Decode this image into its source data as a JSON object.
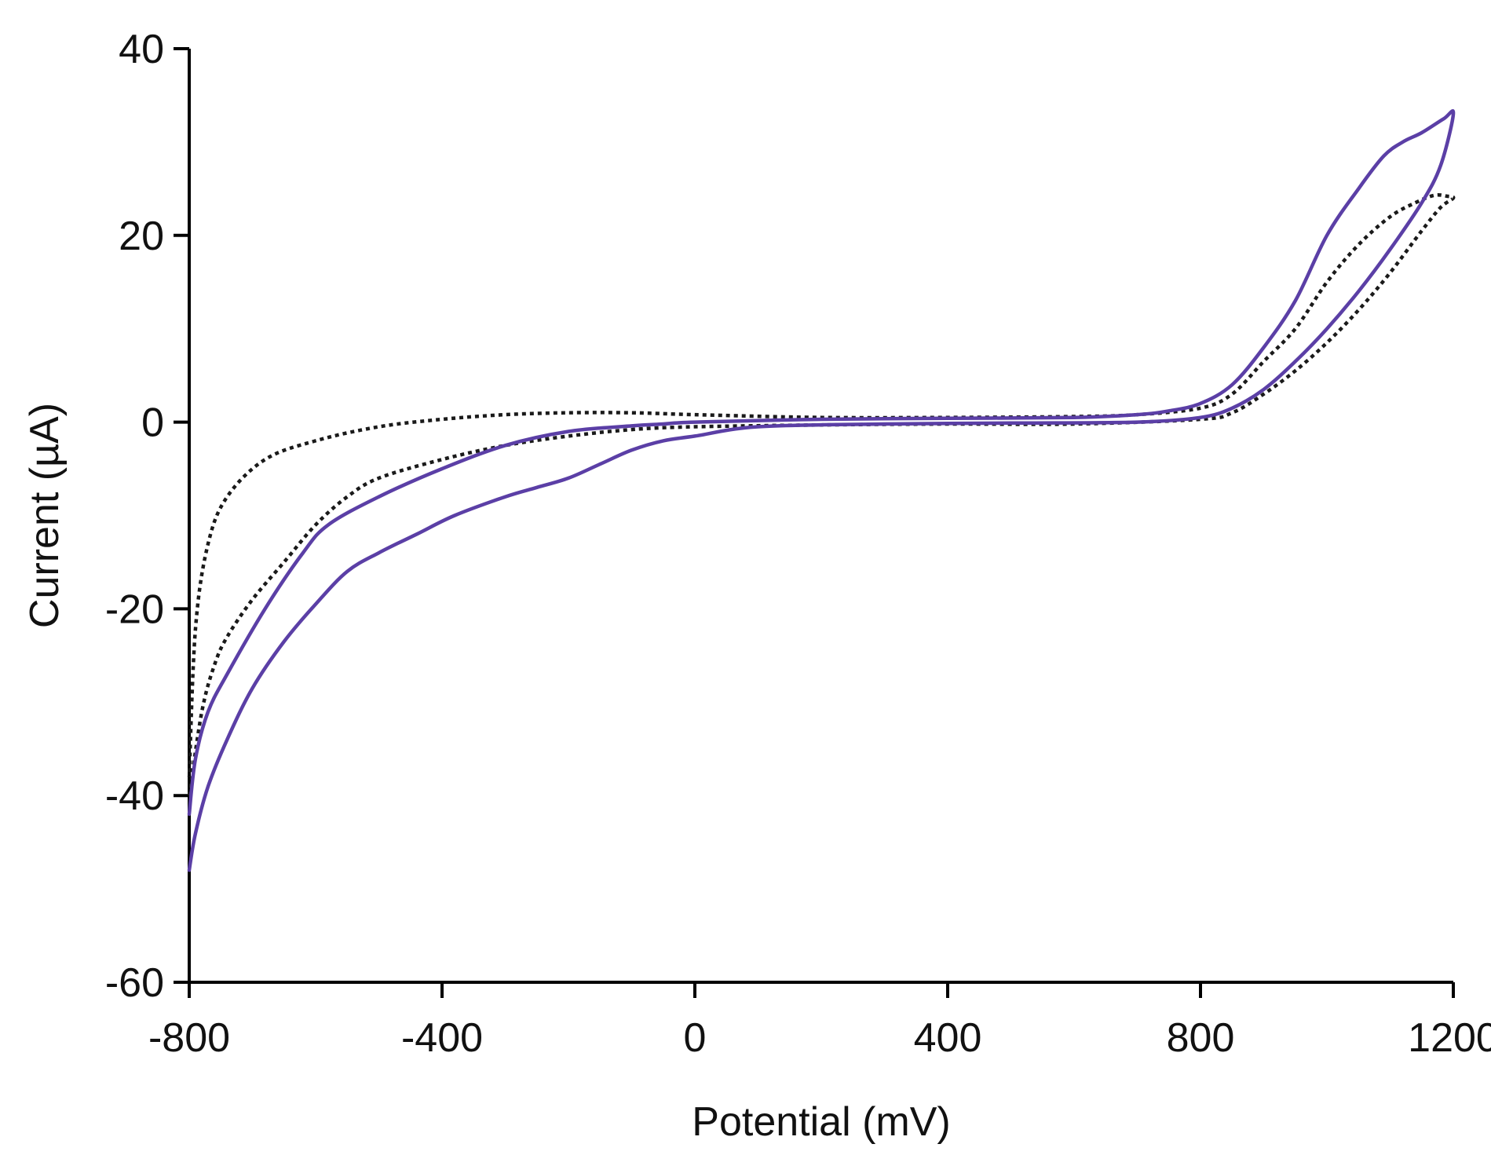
{
  "chart_data": {
    "type": "line",
    "title": "",
    "xlabel": "Potential (mV)",
    "ylabel": "Current (µA)",
    "xlim": [
      -800,
      1200
    ],
    "ylim": [
      -60,
      40
    ],
    "xticks": [
      -800,
      -400,
      0,
      400,
      800,
      1200
    ],
    "yticks": [
      -60,
      -40,
      -20,
      0,
      20,
      40
    ],
    "xtick_labels": [
      "-800",
      "-400",
      "0",
      "400",
      "800",
      "1200"
    ],
    "ytick_labels": [
      "-60",
      "-40",
      "-20",
      "0",
      "20",
      "40"
    ],
    "grid": false,
    "legend": "none",
    "series": [
      {
        "name": "solid",
        "color": "#5b3fa6",
        "style": "solid",
        "points": [
          [
            -800,
            -48
          ],
          [
            -790,
            -44
          ],
          [
            -770,
            -39
          ],
          [
            -740,
            -34
          ],
          [
            -700,
            -28.5
          ],
          [
            -650,
            -23.5
          ],
          [
            -600,
            -19.5
          ],
          [
            -550,
            -16
          ],
          [
            -500,
            -14
          ],
          [
            -440,
            -12
          ],
          [
            -380,
            -10
          ],
          [
            -300,
            -8
          ],
          [
            -250,
            -7
          ],
          [
            -200,
            -6
          ],
          [
            -150,
            -4.5
          ],
          [
            -100,
            -3
          ],
          [
            -50,
            -2
          ],
          [
            0,
            -1.5
          ],
          [
            100,
            -0.5
          ],
          [
            300,
            -0.2
          ],
          [
            500,
            -0.1
          ],
          [
            700,
            0
          ],
          [
            800,
            0.5
          ],
          [
            850,
            1.5
          ],
          [
            900,
            3.5
          ],
          [
            950,
            6.5
          ],
          [
            1000,
            10
          ],
          [
            1050,
            14
          ],
          [
            1100,
            18.5
          ],
          [
            1150,
            23.5
          ],
          [
            1180,
            27.5
          ],
          [
            1200,
            33
          ],
          [
            1185,
            32.5
          ],
          [
            1150,
            31
          ],
          [
            1120,
            30
          ],
          [
            1090,
            28.5
          ],
          [
            1050,
            25
          ],
          [
            1000,
            20
          ],
          [
            950,
            13
          ],
          [
            900,
            8
          ],
          [
            850,
            4
          ],
          [
            800,
            2
          ],
          [
            750,
            1.2
          ],
          [
            700,
            0.8
          ],
          [
            600,
            0.5
          ],
          [
            400,
            0.4
          ],
          [
            200,
            0.3
          ],
          [
            0,
            0
          ],
          [
            -50,
            -0.2
          ],
          [
            -100,
            -0.4
          ],
          [
            -200,
            -1
          ],
          [
            -300,
            -2.5
          ],
          [
            -400,
            -5
          ],
          [
            -500,
            -8
          ],
          [
            -580,
            -11
          ],
          [
            -620,
            -14
          ],
          [
            -680,
            -20
          ],
          [
            -740,
            -27
          ],
          [
            -770,
            -31
          ],
          [
            -790,
            -36
          ],
          [
            -800,
            -42
          ]
        ]
      },
      {
        "name": "dotted",
        "color": "#1a1a1a",
        "style": "dotted",
        "points": [
          [
            -800,
            -40
          ],
          [
            -780,
            -31
          ],
          [
            -760,
            -26
          ],
          [
            -740,
            -23
          ],
          [
            -700,
            -19
          ],
          [
            -650,
            -15
          ],
          [
            -600,
            -11
          ],
          [
            -550,
            -8
          ],
          [
            -500,
            -6
          ],
          [
            -400,
            -4
          ],
          [
            -300,
            -2.5
          ],
          [
            -200,
            -1.5
          ],
          [
            -100,
            -0.8
          ],
          [
            0,
            -0.5
          ],
          [
            200,
            -0.3
          ],
          [
            400,
            -0.2
          ],
          [
            600,
            -0.2
          ],
          [
            800,
            0.3
          ],
          [
            850,
            1
          ],
          [
            900,
            3
          ],
          [
            950,
            5.5
          ],
          [
            1000,
            8.5
          ],
          [
            1050,
            12
          ],
          [
            1100,
            16
          ],
          [
            1150,
            20.5
          ],
          [
            1180,
            23
          ],
          [
            1200,
            24
          ],
          [
            1190,
            24.2
          ],
          [
            1170,
            24.3
          ],
          [
            1140,
            23.5
          ],
          [
            1100,
            22
          ],
          [
            1050,
            19
          ],
          [
            1000,
            15
          ],
          [
            950,
            10
          ],
          [
            900,
            6.5
          ],
          [
            850,
            3
          ],
          [
            800,
            1.5
          ],
          [
            700,
            0.8
          ],
          [
            600,
            0.6
          ],
          [
            400,
            0.5
          ],
          [
            200,
            0.5
          ],
          [
            0,
            0.8
          ],
          [
            -100,
            1
          ],
          [
            -200,
            1
          ],
          [
            -300,
            0.8
          ],
          [
            -400,
            0.3
          ],
          [
            -500,
            -0.5
          ],
          [
            -600,
            -2
          ],
          [
            -680,
            -4
          ],
          [
            -740,
            -8
          ],
          [
            -770,
            -13
          ],
          [
            -790,
            -22
          ],
          [
            -800,
            -38
          ]
        ]
      }
    ]
  }
}
